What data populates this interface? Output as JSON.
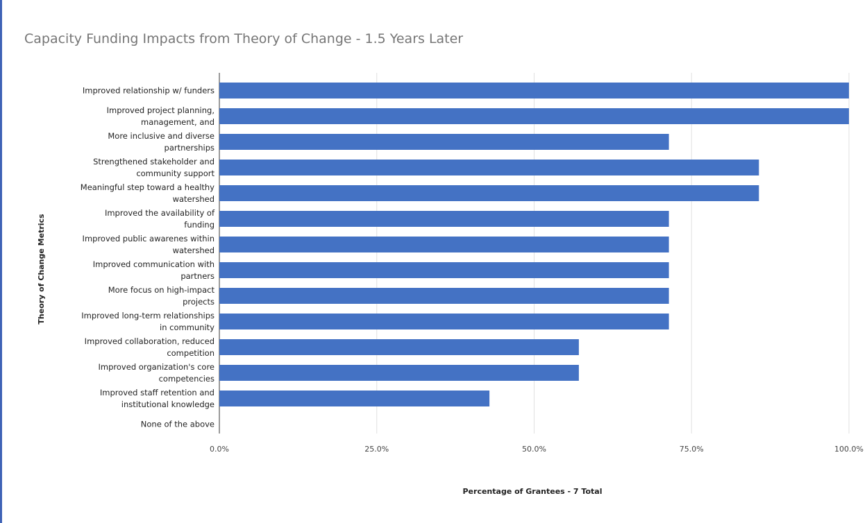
{
  "chart_data": {
    "type": "bar",
    "orientation": "horizontal",
    "title": "Capacity Funding Impacts from Theory of Change - 1.5 Years Later",
    "xlabel": "Percentage of Grantees - 7 Total",
    "ylabel": "Theory of Change Metrics",
    "xlim": [
      0,
      100
    ],
    "xticks": [
      "0.0%",
      "25.0%",
      "50.0%",
      "75.0%",
      "100.0%"
    ],
    "grid": true,
    "bar_color": "#4472c4",
    "categories": [
      [
        "Improved relationship w/ funders"
      ],
      [
        "Improved project planning,",
        "management, and"
      ],
      [
        "More inclusive and diverse",
        "partnerships"
      ],
      [
        "Strengthened stakeholder and",
        "community support"
      ],
      [
        "Meaningful step toward a healthy",
        "watershed"
      ],
      [
        "Improved the availability of",
        "funding"
      ],
      [
        "Improved public awarenes within",
        "watershed"
      ],
      [
        "Improved communication with",
        "partners"
      ],
      [
        "More focus on high-impact",
        "projects"
      ],
      [
        "Improved long-term relationships",
        "in community"
      ],
      [
        "Improved collaboration, reduced",
        "competition"
      ],
      [
        "Improved organization's core",
        "competencies"
      ],
      [
        "Improved staff retention and",
        "institutional knowledge"
      ],
      [
        "None of the above"
      ]
    ],
    "values": [
      100,
      100,
      71.4,
      85.7,
      85.7,
      71.4,
      71.4,
      71.4,
      71.4,
      71.4,
      57.1,
      57.1,
      42.9,
      0
    ]
  }
}
